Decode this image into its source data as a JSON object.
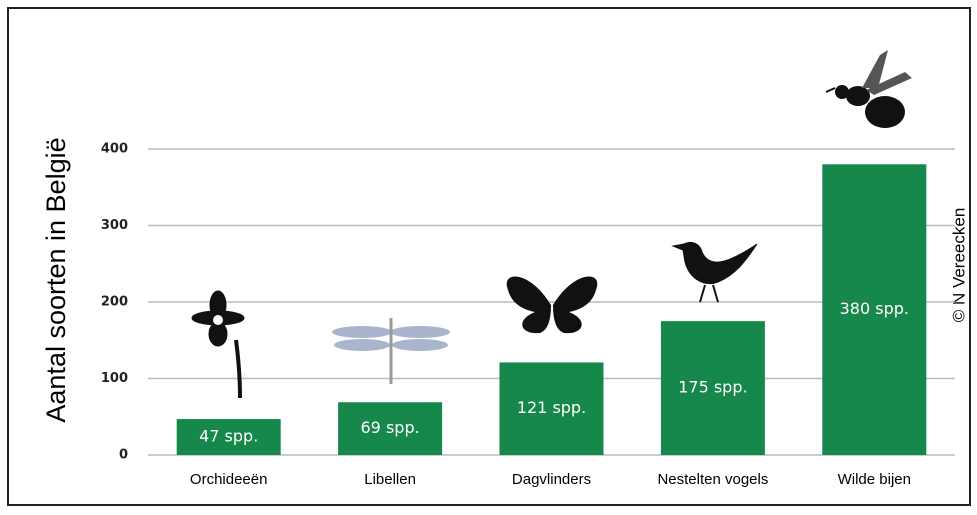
{
  "chart_data": {
    "type": "bar",
    "ylabel": "Aantal soorten in België",
    "credit": "© N Vereecken",
    "categories": [
      "Orchideeën",
      "Libellen",
      "Dagvlinders",
      "Nestelten vogels",
      "Wilde bijen"
    ],
    "values": [
      47,
      69,
      121,
      175,
      380
    ],
    "value_labels": [
      "47 spp.",
      "69 spp.",
      "121 spp.",
      "175 spp.",
      "380 spp."
    ],
    "color": "#16884c",
    "ylim": [
      0,
      400
    ],
    "yticks": [
      0,
      100,
      200,
      300,
      400
    ],
    "grid": true
  }
}
